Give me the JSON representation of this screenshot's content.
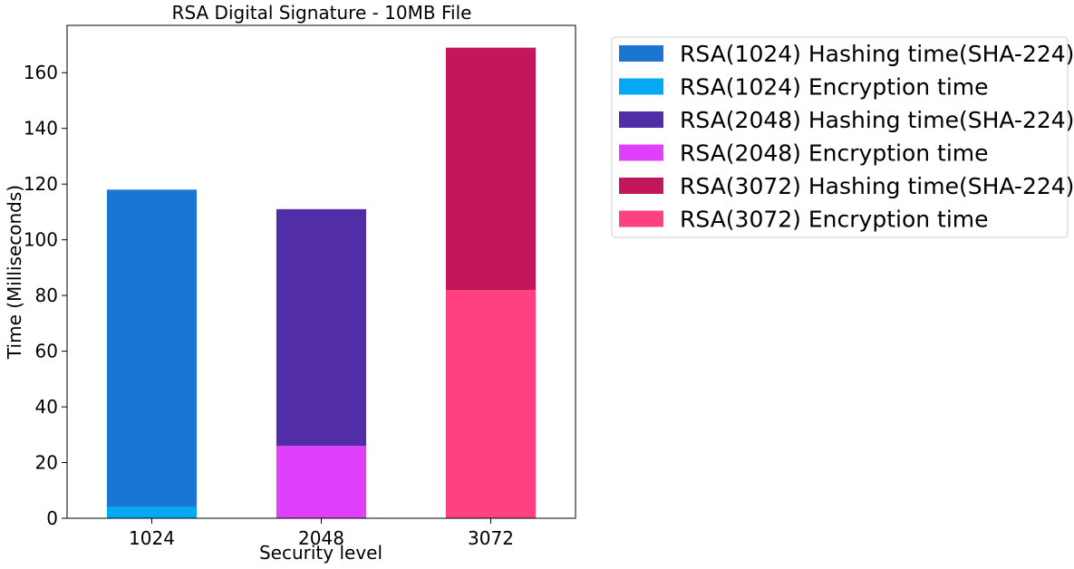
{
  "chart_data": {
    "type": "bar",
    "stacked": true,
    "title": "RSA Digital Signature - 10MB File",
    "xlabel": "Security level",
    "ylabel": "Time (Milliseconds)",
    "categories": [
      "1024",
      "2048",
      "3072"
    ],
    "ylim": [
      0,
      177
    ],
    "yticks": [
      0,
      20,
      40,
      60,
      80,
      100,
      120,
      140,
      160
    ],
    "grid": false,
    "legend_position": "outside-top-right",
    "bars": [
      {
        "category": "1024",
        "segments": [
          {
            "series": "RSA(1024) Encryption time",
            "value": 4,
            "color": "#03A9F4"
          },
          {
            "series": "RSA(1024) Hashing time(SHA-224)",
            "value": 114,
            "color": "#1976D2"
          }
        ]
      },
      {
        "category": "2048",
        "segments": [
          {
            "series": "RSA(2048) Encryption time",
            "value": 26,
            "color": "#E040FB"
          },
          {
            "series": "RSA(2048) Hashing time(SHA-224)",
            "value": 85,
            "color": "#512DA8"
          }
        ]
      },
      {
        "category": "3072",
        "segments": [
          {
            "series": "RSA(3072) Encryption time",
            "value": 82,
            "color": "#FF4081"
          },
          {
            "series": "RSA(3072) Hashing time(SHA-224)",
            "value": 87,
            "color": "#C2185B"
          }
        ]
      }
    ],
    "legend": [
      {
        "label": "RSA(1024) Hashing time(SHA-224)",
        "color": "#1976D2"
      },
      {
        "label": "RSA(1024) Encryption time",
        "color": "#03A9F4"
      },
      {
        "label": "RSA(2048) Hashing time(SHA-224)",
        "color": "#512DA8"
      },
      {
        "label": "RSA(2048) Encryption time",
        "color": "#E040FB"
      },
      {
        "label": "RSA(3072) Hashing time(SHA-224)",
        "color": "#C2185B"
      },
      {
        "label": "RSA(3072) Encryption time",
        "color": "#FF4081"
      }
    ]
  }
}
